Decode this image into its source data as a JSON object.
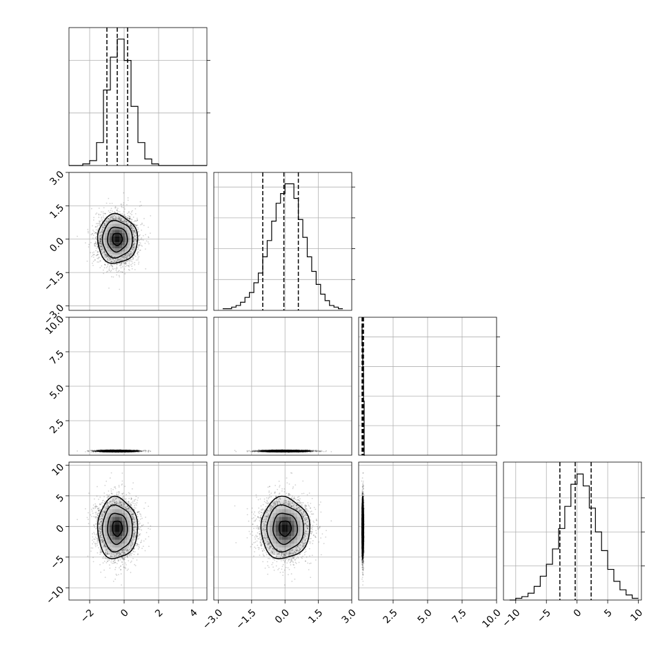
{
  "chart_data": {
    "type": "corner",
    "colors": {
      "ink": "#000000",
      "grid": "#b0b0b0",
      "scatter": "#000000",
      "density": "#000000"
    },
    "grid": true,
    "sample_count": 3000,
    "parameters": [
      {
        "mean": -0.4,
        "sd": 0.58,
        "range": [
          -3.2,
          4.8
        ],
        "ticks": [
          -2,
          0,
          2,
          4
        ],
        "tick_labels": [
          "−2",
          "0",
          "2",
          "4"
        ],
        "quantiles": [
          -1.0,
          -0.4,
          0.2
        ]
      },
      {
        "mean": 0.0,
        "sd": 0.55,
        "range": [
          -3.2,
          3.0
        ],
        "ticks": [
          -3.0,
          -1.5,
          0.0,
          1.5,
          3.0
        ],
        "tick_labels": [
          "−3.0",
          "−1.5",
          "0.0",
          "1.5",
          "3.0"
        ],
        "quantiles": [
          -1.0,
          -0.05,
          0.6
        ]
      },
      {
        "mean": 0.3,
        "sd": 0.03,
        "range": [
          0.0,
          10.0
        ],
        "ticks": [
          2.5,
          5.0,
          7.5,
          10.0
        ],
        "tick_labels": [
          "2.5",
          "5.0",
          "7.5",
          "10.0"
        ],
        "quantiles": [
          0.25,
          0.3,
          0.35
        ]
      },
      {
        "mean": -0.3,
        "sd": 2.5,
        "range": [
          -12.0,
          10.5
        ],
        "ticks": [
          -10,
          -5,
          0,
          5,
          10
        ],
        "tick_labels": [
          "−10",
          "−5",
          "0",
          "5",
          "10"
        ],
        "quantiles": [
          -2.8,
          -0.3,
          2.3
        ]
      }
    ],
    "diagonal_histograms": [
      {
        "param": 0,
        "bin_edges": [
          -3.2,
          -2.8,
          -2.4,
          -2.0,
          -1.6,
          -1.2,
          -0.8,
          -0.4,
          0.0,
          0.4,
          0.8,
          1.2,
          1.6,
          2.0,
          2.4,
          2.8,
          3.2,
          3.6,
          4.0,
          4.4,
          4.8
        ],
        "counts": [
          0,
          0,
          1,
          3,
          14,
          46,
          66,
          77,
          64,
          36,
          14,
          4,
          1,
          0,
          0,
          0,
          0,
          0,
          0,
          0
        ],
        "ymax": 84,
        "ticks": [
          32,
          64
        ]
      },
      {
        "param": 1,
        "bin_edges": [
          -2.8,
          -2.6,
          -2.4,
          -2.2,
          -2.0,
          -1.8,
          -1.6,
          -1.4,
          -1.2,
          -1.0,
          -0.8,
          -0.6,
          -0.4,
          -0.2,
          0.0,
          0.2,
          0.4,
          0.6,
          0.8,
          1.0,
          1.2,
          1.4,
          1.6,
          1.8,
          2.0,
          2.2,
          2.4,
          2.6
        ],
        "counts": [
          1,
          1,
          2,
          3,
          5,
          8,
          11,
          17,
          23,
          33,
          43,
          55,
          66,
          72,
          78,
          78,
          69,
          56,
          45,
          33,
          24,
          16,
          10,
          6,
          3,
          2,
          1
        ],
        "ymax": 85,
        "ticks": [
          19,
          38,
          57,
          76
        ]
      },
      {
        "param": 2,
        "bin_edges": [
          0.2,
          0.25,
          0.3,
          0.35,
          0.4,
          0.45
        ],
        "counts": [
          52,
          45,
          36,
          22,
          0
        ],
        "ymax": 56,
        "ticks": [
          12,
          24,
          36,
          48
        ]
      },
      {
        "param": 3,
        "bin_edges": [
          -11.0,
          -10.0,
          -9.0,
          -8.0,
          -7.0,
          -6.0,
          -5.0,
          -4.0,
          -3.0,
          -2.0,
          -1.0,
          0.0,
          1.0,
          2.0,
          3.0,
          4.0,
          5.0,
          6.0,
          7.0,
          8.0,
          9.0,
          10.0
        ],
        "counts": [
          0,
          1,
          2,
          4,
          8,
          14,
          21,
          30,
          42,
          55,
          68,
          74,
          67,
          54,
          40,
          29,
          18,
          11,
          6,
          3,
          1
        ],
        "ymax": 81,
        "ticks": [
          20,
          40,
          60
        ]
      }
    ],
    "pairs": [
      {
        "x_param": 0,
        "y_param": 1,
        "position": "row2-col1"
      },
      {
        "x_param": 0,
        "y_param": 2,
        "position": "row3-col1"
      },
      {
        "x_param": 1,
        "y_param": 2,
        "position": "row3-col2"
      },
      {
        "x_param": 0,
        "y_param": 3,
        "position": "row4-col1"
      },
      {
        "x_param": 1,
        "y_param": 3,
        "position": "row4-col2"
      },
      {
        "x_param": 2,
        "y_param": 3,
        "position": "row4-col3"
      }
    ],
    "contour_levels_sigma": [
      0.5,
      1.0,
      1.5,
      2.0
    ]
  }
}
